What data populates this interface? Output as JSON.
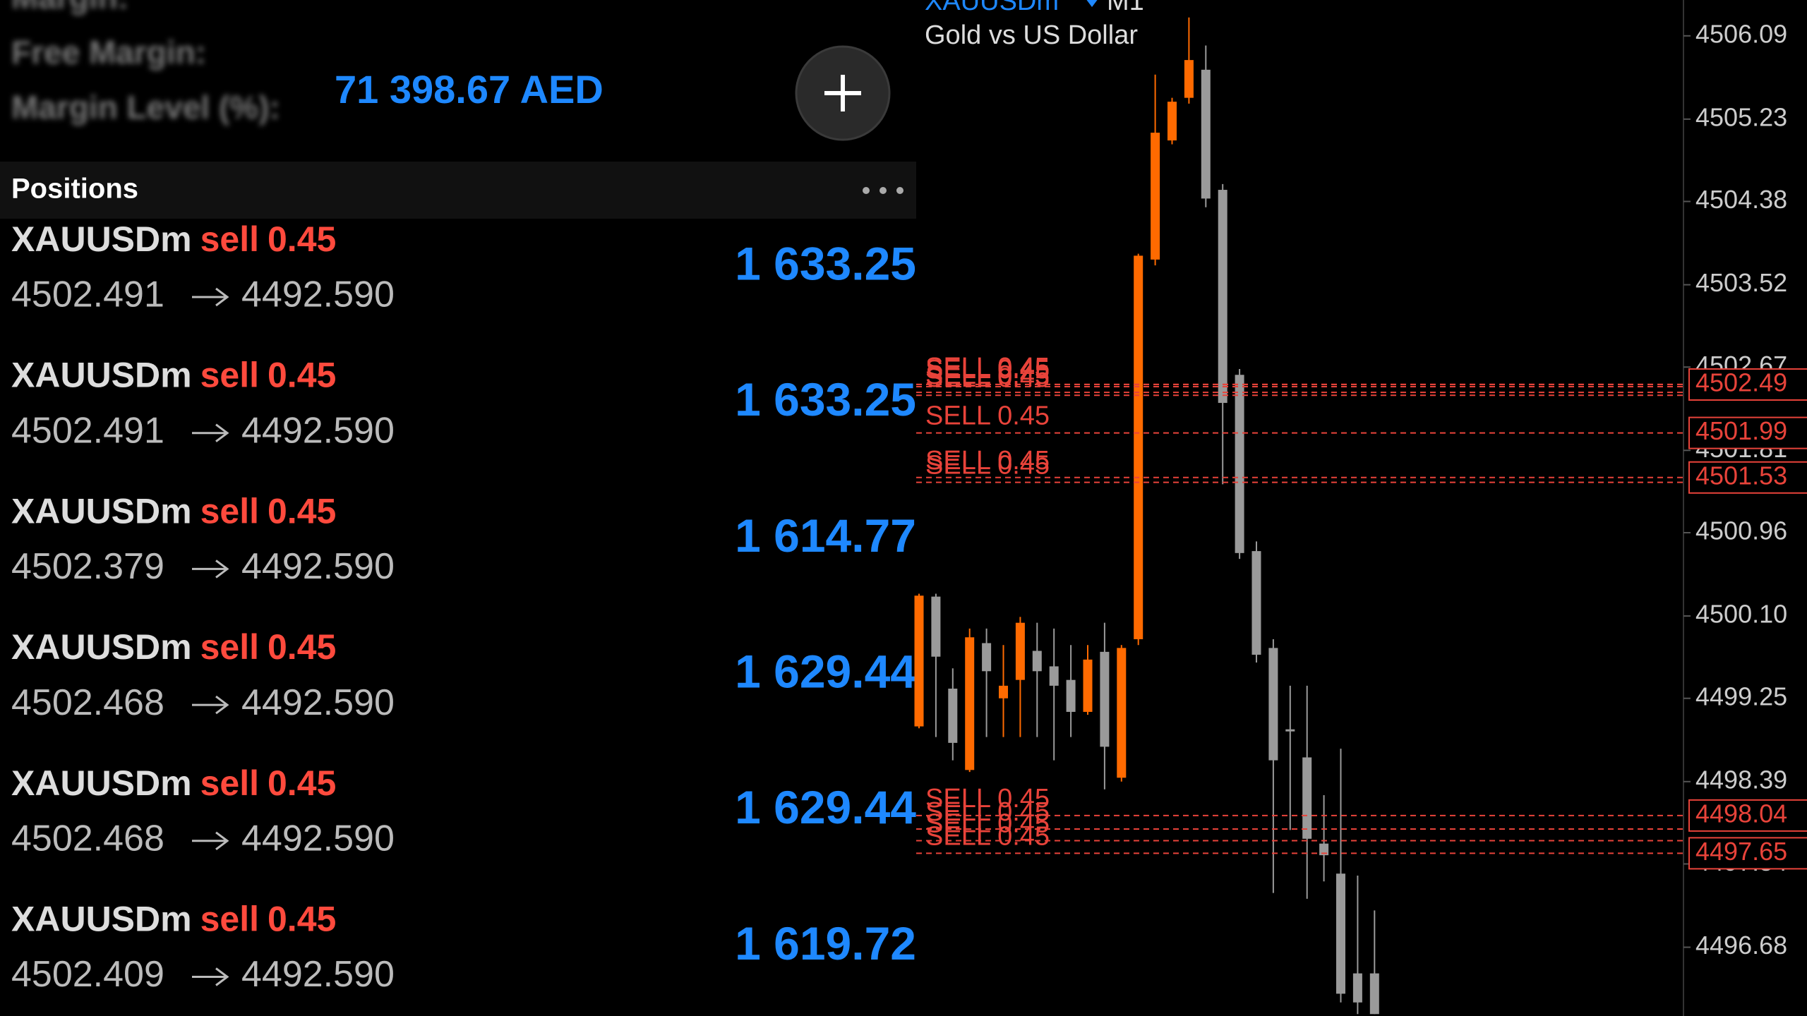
{
  "account": {
    "rows": [
      "Margin:",
      "Free Margin:",
      "Margin Level (%):"
    ],
    "highlight": "71 398.67 AED"
  },
  "positions": {
    "title": "Positions",
    "items": [
      {
        "symbol": "XAUUSDm",
        "side": "sell",
        "volume": "0.45",
        "open": "4502.491",
        "close": "4492.590",
        "profit": "1 633.25"
      },
      {
        "symbol": "XAUUSDm",
        "side": "sell",
        "volume": "0.45",
        "open": "4502.491",
        "close": "4492.590",
        "profit": "1 633.25"
      },
      {
        "symbol": "XAUUSDm",
        "side": "sell",
        "volume": "0.45",
        "open": "4502.379",
        "close": "4492.590",
        "profit": "1 614.77"
      },
      {
        "symbol": "XAUUSDm",
        "side": "sell",
        "volume": "0.45",
        "open": "4502.468",
        "close": "4492.590",
        "profit": "1 629.44"
      },
      {
        "symbol": "XAUUSDm",
        "side": "sell",
        "volume": "0.45",
        "open": "4502.468",
        "close": "4492.590",
        "profit": "1 629.44"
      },
      {
        "symbol": "XAUUSDm",
        "side": "sell",
        "volume": "0.45",
        "open": "4502.409",
        "close": "4492.590",
        "profit": "1 619.72"
      }
    ]
  },
  "chart_data": {
    "type": "candlestick",
    "title": "XAUUSDm",
    "timeframe": "M1",
    "subtitle": "Gold vs US Dollar",
    "open": [
      4498.96,
      4500.3,
      4499.35,
      4498.51,
      4499.82,
      4499.25,
      4499.44,
      4499.74,
      4499.58,
      4499.44,
      4499.11,
      4499.73,
      4498.43,
      4499.86,
      4503.78,
      4505.01,
      4505.45,
      4505.74,
      4504.5,
      4502.59,
      4500.77,
      4499.77,
      4498.93,
      4498.64,
      4497.75,
      4497.44,
      4496.41,
      4496.41
    ],
    "high": [
      4500.33,
      4500.33,
      4499.56,
      4499.97,
      4499.97,
      4499.8,
      4500.09,
      4500.03,
      4499.97,
      4499.8,
      4499.8,
      4500.03,
      4499.8,
      4503.84,
      4505.69,
      4505.45,
      4506.28,
      4505.99,
      4504.56,
      4502.65,
      4500.87,
      4499.86,
      4499.38,
      4499.38,
      4498.25,
      4498.73,
      4497.42,
      4497.06
    ],
    "low": [
      4498.94,
      4498.85,
      4498.61,
      4498.49,
      4498.85,
      4498.85,
      4498.85,
      4498.85,
      4498.61,
      4498.85,
      4499.08,
      4498.31,
      4498.39,
      4499.8,
      4503.72,
      4504.97,
      4505.39,
      4504.32,
      4501.46,
      4500.69,
      4499.62,
      4497.24,
      4497.89,
      4497.18,
      4497.36,
      4496.11,
      4495.99,
      4495.99
    ],
    "close": [
      4500.31,
      4499.68,
      4498.79,
      4499.88,
      4499.53,
      4499.38,
      4500.03,
      4499.53,
      4499.38,
      4499.11,
      4499.65,
      4498.75,
      4499.77,
      4503.82,
      4505.09,
      4505.41,
      4505.84,
      4504.41,
      4502.3,
      4500.75,
      4499.7,
      4498.61,
      4498.92,
      4497.8,
      4497.63,
      4496.2,
      4496.11,
      4495.99
    ],
    "up_color": "#ff6a00",
    "down_color": "#9a9a9a",
    "ylim": [
      4495.97,
      4506.46
    ],
    "yticks": [
      4506.09,
      4505.23,
      4504.38,
      4503.52,
      4502.67,
      4501.81,
      4500.96,
      {
        "value": 4500.1,
        "label": "4500.10"
      },
      4499.25,
      4498.39,
      4497.54,
      4496.68
    ],
    "order_color": "#e8433a",
    "order_lines": [
      {
        "label": "SELL 0.45",
        "price": 4502.491
      },
      {
        "label": "SELL 0.45",
        "price": 4502.491
      },
      {
        "label": "SELL 0.45",
        "price": 4502.379
      },
      {
        "label": "SELL 0.45",
        "price": 4502.468
      },
      {
        "label": "SELL 0.45",
        "price": 4502.468
      },
      {
        "label": "SELL 0.45",
        "price": 4502.409
      },
      {
        "label": "SELL 0.45",
        "price": 4501.99
      },
      {
        "label": "SELL 0.45",
        "price": 4501.53
      },
      {
        "label": "SELL 0.45",
        "price": 4501.48
      },
      {
        "label": "SELL 0.45",
        "price": 4498.04
      },
      {
        "label": "SELL 0.45",
        "price": 4497.9
      },
      {
        "label": "SELL 0.45",
        "price": 4497.78
      },
      {
        "label": "SELL 0.45",
        "price": 4497.65
      }
    ],
    "price_tags": [
      4502.49,
      4501.99,
      4501.53,
      4498.04,
      4497.65
    ]
  }
}
